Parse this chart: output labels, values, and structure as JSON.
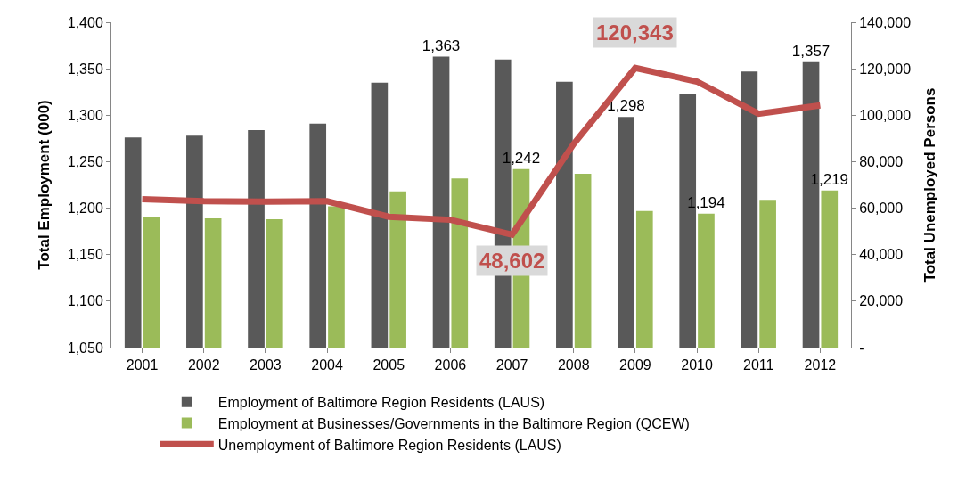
{
  "chart_data": {
    "type": "bar",
    "categories": [
      "2001",
      "2002",
      "2003",
      "2004",
      "2005",
      "2006",
      "2007",
      "2008",
      "2009",
      "2010",
      "2011",
      "2012"
    ],
    "ylabel": "Total Employment (000)",
    "y2label": "Total Unemployed Persons",
    "ylim": [
      1050,
      1400
    ],
    "yticks": [
      {
        "value": 1050,
        "label": "1,050"
      },
      {
        "value": 1100,
        "label": "1,100"
      },
      {
        "value": 1150,
        "label": "1,150"
      },
      {
        "value": 1200,
        "label": "1,200"
      },
      {
        "value": 1250,
        "label": "1,250"
      },
      {
        "value": 1300,
        "label": "1,300"
      },
      {
        "value": 1350,
        "label": "1,350"
      },
      {
        "value": 1400,
        "label": "1,400"
      }
    ],
    "y2lim": [
      0,
      140000
    ],
    "y2ticks": [
      {
        "value": 0,
        "label": "-"
      },
      {
        "value": 20000,
        "label": "20,000"
      },
      {
        "value": 40000,
        "label": "40,000"
      },
      {
        "value": 60000,
        "label": "60,000"
      },
      {
        "value": 80000,
        "label": "80,000"
      },
      {
        "value": 100000,
        "label": "100,000"
      },
      {
        "value": 120000,
        "label": "120,000"
      },
      {
        "value": 140000,
        "label": "140,000"
      }
    ],
    "legend": "bottom",
    "series": [
      {
        "name": "Employment of Baltimore Region Residents (LAUS)",
        "color": "#595959",
        "values": [
          1276,
          1278,
          1284,
          1291,
          1335,
          1363,
          1360,
          1336,
          1298,
          1323,
          1347,
          1357
        ],
        "value_labels": [
          null,
          null,
          null,
          null,
          null,
          "1,363",
          null,
          null,
          "1,298",
          null,
          null,
          "1,357"
        ]
      },
      {
        "name": "Employment at Businesses/Governments in the Baltimore Region (QCEW)",
        "color": "#9bbb59",
        "values": [
          1190,
          1189,
          1188,
          1202,
          1218,
          1232,
          1242,
          1237,
          1197,
          1194,
          1209,
          1219
        ],
        "value_labels": [
          null,
          null,
          null,
          null,
          null,
          null,
          "1,242",
          null,
          null,
          "1,194",
          null,
          "1,219"
        ]
      },
      {
        "name": "Unemployment of Baltimore Region Residents (LAUS)",
        "color": "#c0504d",
        "type": "line",
        "axis": "y2",
        "marker": "none",
        "line_style": "solid",
        "values": [
          63900,
          63000,
          62800,
          63000,
          56300,
          55000,
          48602,
          87600,
          120343,
          114500,
          100600,
          104200
        ],
        "value_labels": [
          null,
          null,
          null,
          null,
          null,
          null,
          "48,602",
          null,
          "120,343",
          null,
          null,
          null
        ]
      }
    ]
  }
}
